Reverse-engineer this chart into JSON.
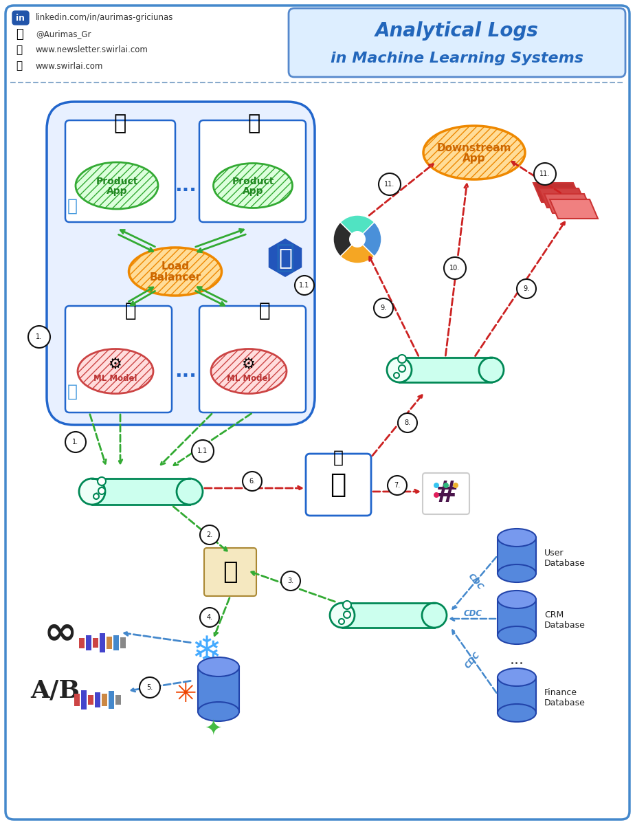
{
  "title_line1": "Analytical Logs",
  "title_line2": "in Machine Learning Systems",
  "title_box_color": "#ddeeff",
  "title_border_color": "#5588cc",
  "title_text_color": "#2266bb",
  "bg_color": "#ffffff",
  "border_color": "#4488cc",
  "divider_color": "#88aacc",
  "social_links": [
    "linkedin.com/in/aurimas-griciunas",
    "@Aurimas_Gr",
    "www.newsletter.swirlai.com",
    "www.swirlai.com"
  ],
  "main_box_color": "#e8f0ff",
  "main_box_border": "#2266cc",
  "inner_box_border": "#2266cc",
  "product_app_fill": "#ddffdd",
  "product_app_border": "#33aa33",
  "ml_model_fill": "#ffdddd",
  "ml_model_border": "#cc4444",
  "load_balancer_fill": "#ffdd99",
  "load_balancer_border": "#ee8800",
  "downstream_fill": "#ffdd99",
  "downstream_border": "#ee8800",
  "kafka_fill": "#ccffee",
  "kafka_border": "#008855",
  "arrow_green": "#33aa33",
  "arrow_red": "#cc2222",
  "arrow_blue": "#4488cc",
  "db_fill": "#5588dd",
  "db_top": "#7799ee",
  "db_border": "#2244aa",
  "label_color": "#222222",
  "circle_border": "#222222"
}
